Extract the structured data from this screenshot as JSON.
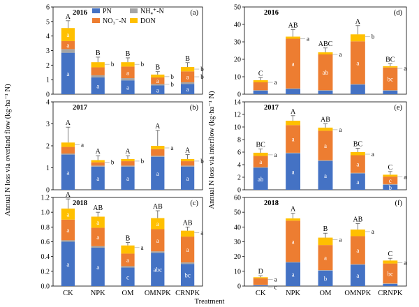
{
  "figure": {
    "xlabel": "Treatment",
    "ylabel_left": "Annual N loss via overland flow (kg·ha⁻¹ N)",
    "ylabel_right": "Annual N loss via interflow (kg·ha⁻¹ N)",
    "legend": [
      "PN",
      "NH₄⁺-N",
      "NO₃⁻-N",
      "DON"
    ]
  },
  "colors": {
    "PN": "#4472c4",
    "NH4": "#a5a5a5",
    "NO3": "#ed7d31",
    "DON": "#ffc000"
  },
  "chart_data": [
    {
      "type": "bar",
      "stacked": true,
      "panel": "(a)",
      "title": "2016",
      "categories": [
        "CK",
        "NPK",
        "OM",
        "OMNPK",
        "CRNPK"
      ],
      "ylim": [
        0,
        6
      ],
      "yticks": [
        0,
        1,
        2,
        3,
        4,
        5,
        6
      ],
      "series": [
        {
          "name": "PN",
          "values": [
            2.85,
            1.15,
            0.95,
            0.6,
            0.7
          ],
          "labels": [
            "a",
            "a",
            "a",
            "a",
            "a"
          ]
        },
        {
          "name": "NH₄⁺-N",
          "values": [
            0.25,
            0.15,
            0.15,
            0.1,
            0.12
          ],
          "labels": [
            "",
            "",
            "",
            "",
            ""
          ]
        },
        {
          "name": "NO₃⁻-N",
          "values": [
            0.55,
            0.55,
            0.8,
            0.45,
            0.75
          ],
          "labels": [
            "a",
            "",
            "a",
            "a",
            "a"
          ]
        },
        {
          "name": "DON",
          "values": [
            0.9,
            0.35,
            0.3,
            0.2,
            0.3
          ],
          "labels": [
            "a",
            "",
            "",
            "",
            ""
          ]
        }
      ],
      "errors": [
        0.5,
        0.35,
        0.3,
        0.2,
        0.3
      ],
      "group_labels": [
        "A",
        "B",
        "B",
        "B",
        "B"
      ],
      "side_labels": [
        [],
        [
          "b"
        ],
        [
          "b"
        ],
        [
          "b",
          "b"
        ],
        [
          "b",
          "b"
        ]
      ]
    },
    {
      "type": "bar",
      "stacked": true,
      "panel": "(b)",
      "title": "2017",
      "categories": [
        "CK",
        "NPK",
        "OM",
        "OMNPK",
        "CRNPK"
      ],
      "ylim": [
        0,
        4
      ],
      "yticks": [
        0,
        1,
        2,
        3,
        4
      ],
      "series": [
        {
          "name": "PN",
          "values": [
            1.6,
            1.05,
            1.05,
            1.5,
            1.05
          ],
          "labels": [
            "a",
            "a",
            "a",
            "a",
            "a"
          ]
        },
        {
          "name": "NH₄⁺-N",
          "values": [
            0.05,
            0.05,
            0.05,
            0.05,
            0.05
          ],
          "labels": [
            "",
            "",
            "",
            "",
            ""
          ]
        },
        {
          "name": "NO₃⁻-N",
          "values": [
            0.3,
            0.15,
            0.2,
            0.3,
            0.2
          ],
          "labels": [
            "",
            "",
            "",
            "",
            ""
          ]
        },
        {
          "name": "DON",
          "values": [
            0.2,
            0.1,
            0.1,
            0.15,
            0.1
          ],
          "labels": [
            "",
            "",
            "",
            "",
            ""
          ]
        }
      ],
      "errors": [
        0.7,
        0.2,
        0.15,
        0.7,
        0.2
      ],
      "group_labels": [
        "A",
        "A",
        "A",
        "A",
        "A"
      ],
      "side_labels": [
        [
          "a"
        ],
        [
          "b"
        ],
        [
          "b"
        ],
        [
          "a"
        ],
        [
          "b"
        ]
      ]
    },
    {
      "type": "bar",
      "stacked": true,
      "panel": "(c)",
      "title": "2018",
      "categories": [
        "CK",
        "NPK",
        "OM",
        "OMNPK",
        "CRNPK"
      ],
      "ylim": [
        0,
        1.2
      ],
      "yticks": [
        0,
        0.2,
        0.4,
        0.6,
        0.8,
        1.0,
        1.2
      ],
      "series": [
        {
          "name": "PN",
          "values": [
            0.6,
            0.52,
            0.25,
            0.45,
            0.3
          ],
          "labels": [
            "a",
            "a",
            "c",
            "abc",
            "bc"
          ]
        },
        {
          "name": "NH₄⁺-N",
          "values": [
            0.02,
            0.02,
            0.02,
            0.02,
            0.02
          ],
          "labels": [
            "",
            "",
            "",
            "",
            ""
          ]
        },
        {
          "name": "NO₃⁻-N",
          "values": [
            0.28,
            0.25,
            0.17,
            0.3,
            0.35
          ],
          "labels": [
            "a",
            "a",
            "a",
            "a",
            "a"
          ]
        },
        {
          "name": "DON",
          "values": [
            0.15,
            0.15,
            0.11,
            0.15,
            0.08
          ],
          "labels": [
            "a",
            "a",
            "",
            "a",
            ""
          ]
        }
      ],
      "errors": [
        0.13,
        0.06,
        0.04,
        0.1,
        0.05
      ],
      "group_labels": [
        "A",
        "AB",
        "B",
        "AB",
        "AB"
      ],
      "side_labels": [
        [],
        [],
        [
          "a"
        ],
        [],
        [
          "a"
        ]
      ]
    },
    {
      "type": "bar",
      "stacked": true,
      "panel": "(d)",
      "title": "2016",
      "categories": [
        "CK",
        "NPK",
        "OM",
        "OMNPK",
        "CRNPK"
      ],
      "ylim": [
        0,
        50
      ],
      "yticks": [
        0,
        10,
        20,
        30,
        40,
        50
      ],
      "series": [
        {
          "name": "PN",
          "values": [
            2.0,
            3.0,
            2.0,
            5.5,
            2.0
          ],
          "labels": [
            "",
            "",
            "",
            "",
            ""
          ]
        },
        {
          "name": "NH₄⁺-N",
          "values": [
            0.3,
            0.3,
            0.3,
            0.3,
            0.3
          ],
          "labels": [
            "",
            "",
            "",
            "",
            ""
          ]
        },
        {
          "name": "NO₃⁻-N",
          "values": [
            4.5,
            28.5,
            20.5,
            24.5,
            13.0
          ],
          "labels": [
            "",
            "a",
            "ab",
            "a",
            "bc"
          ]
        },
        {
          "name": "DON",
          "values": [
            1.2,
            1.2,
            1.2,
            4.0,
            0.7
          ],
          "labels": [
            "",
            "",
            "",
            "",
            ""
          ]
        }
      ],
      "errors": [
        1.5,
        4.0,
        2.5,
        5.0,
        1.5
      ],
      "group_labels": [
        "C",
        "AB",
        "ABC",
        "A",
        "BC"
      ],
      "side_labels": [
        [
          "a"
        ],
        [
          "a"
        ],
        [
          "a"
        ],
        [
          "b"
        ],
        [
          "a"
        ]
      ]
    },
    {
      "type": "bar",
      "stacked": true,
      "panel": "(e)",
      "title": "2017",
      "categories": [
        "CK",
        "NPK",
        "OM",
        "OMNPK",
        "CRNPK"
      ],
      "ylim": [
        0,
        14
      ],
      "yticks": [
        0,
        2,
        4,
        6,
        8,
        10,
        12,
        14
      ],
      "series": [
        {
          "name": "PN",
          "values": [
            3.5,
            5.8,
            4.6,
            2.6,
            0.8
          ],
          "labels": [
            "ab",
            "a",
            "a",
            "a",
            "b"
          ]
        },
        {
          "name": "NH₄⁺-N",
          "values": [
            0.1,
            0.1,
            0.1,
            0.1,
            0.1
          ],
          "labels": [
            "",
            "",
            "",
            "",
            ""
          ]
        },
        {
          "name": "NO₃⁻-N",
          "values": [
            1.8,
            4.4,
            4.7,
            2.8,
            1.2
          ],
          "labels": [
            "a",
            "a",
            "a",
            "a",
            "c"
          ]
        },
        {
          "name": "DON",
          "values": [
            0.5,
            0.7,
            0.5,
            0.5,
            0.3
          ],
          "labels": [
            "b",
            "",
            "",
            "",
            ""
          ]
        }
      ],
      "errors": [
        0.6,
        0.8,
        0.6,
        0.6,
        0.5
      ],
      "group_labels": [
        "BC",
        "A",
        "AB",
        "BC",
        "C"
      ],
      "side_labels": [
        [
          "a"
        ],
        [],
        [
          "a"
        ],
        [
          "a"
        ],
        [
          "a"
        ]
      ]
    },
    {
      "type": "bar",
      "stacked": true,
      "panel": "(f)",
      "title": "2018",
      "categories": [
        "CK",
        "NPK",
        "OM",
        "OMNPK",
        "CRNPK"
      ],
      "ylim": [
        0,
        60
      ],
      "yticks": [
        0,
        10,
        20,
        30,
        40,
        50,
        60
      ],
      "series": [
        {
          "name": "PN",
          "values": [
            0.5,
            16.0,
            10.5,
            14.5,
            1.5
          ],
          "labels": [
            "",
            "a",
            "b",
            "a",
            ""
          ]
        },
        {
          "name": "NH₄⁺-N",
          "values": [
            0.3,
            0.3,
            0.3,
            0.3,
            0.3
          ],
          "labels": [
            "",
            "",
            "",
            "",
            ""
          ]
        },
        {
          "name": "NO₃⁻-N",
          "values": [
            4.5,
            28.0,
            17.0,
            19.0,
            13.5
          ],
          "labels": [
            "",
            "a",
            "a",
            "a",
            "bc"
          ]
        },
        {
          "name": "DON",
          "values": [
            0.7,
            1.5,
            5.0,
            4.5,
            2.0
          ],
          "labels": [
            "",
            "",
            "",
            "",
            ""
          ]
        }
      ],
      "errors": [
        1.0,
        3.5,
        3.0,
        4.0,
        1.5
      ],
      "group_labels": [
        "D",
        "A",
        "B",
        "AB",
        "C"
      ],
      "side_labels": [
        [
          "a",
          "c"
        ],
        [],
        [
          "a"
        ],
        [
          "a"
        ],
        [
          "a"
        ]
      ]
    }
  ]
}
